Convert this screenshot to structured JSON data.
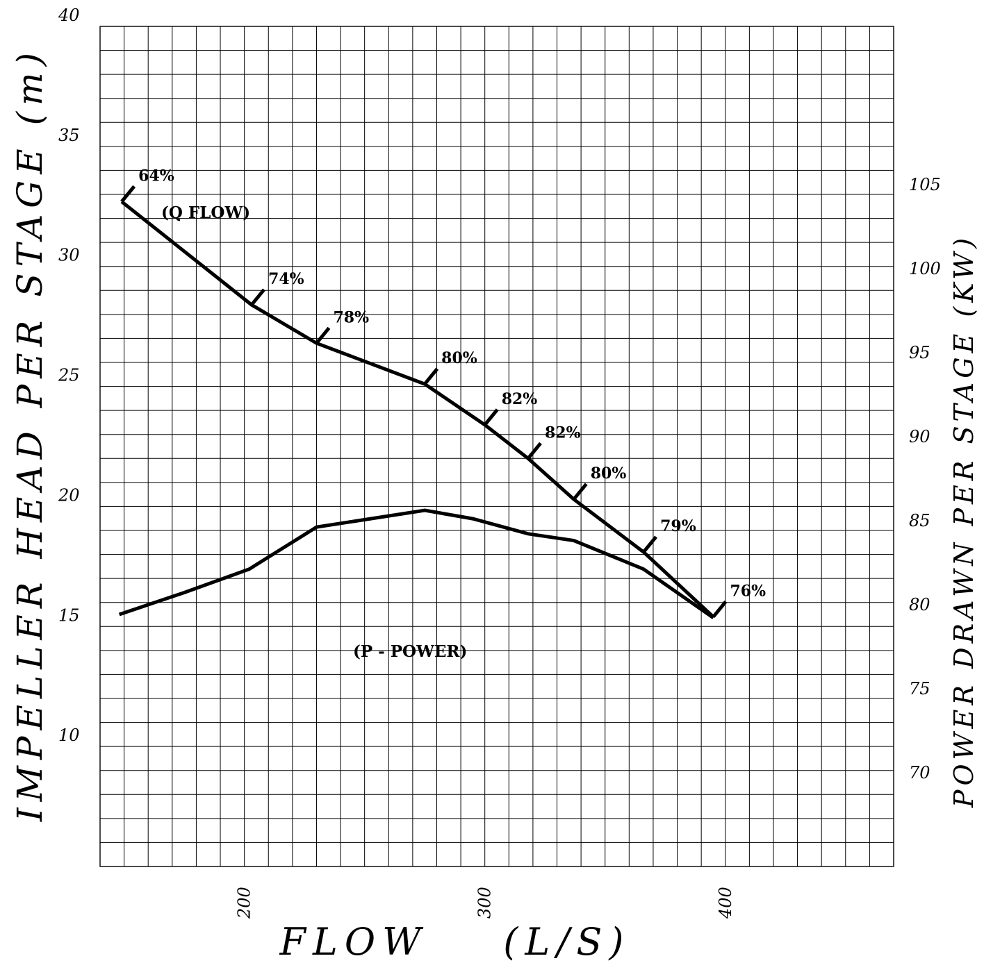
{
  "chart_data": {
    "type": "line",
    "title": "",
    "xlabel": "FLOW    (L/S)",
    "ylabel_left": "IMPELLER HEAD PER STAGE (m)",
    "ylabel_right": "POWER DRAWN PER STAGE (KW)",
    "xlim": [
      140,
      470
    ],
    "ylim_left": [
      5,
      40
    ],
    "ylim_right": [
      65,
      115
    ],
    "x_ticks": [
      "200",
      "300",
      "400"
    ],
    "y_left_ticks": [
      "10",
      "15",
      "20",
      "25",
      "30",
      "35",
      "40"
    ],
    "y_right_ticks": [
      "70",
      "75",
      "80",
      "85",
      "90",
      "95",
      "100",
      "105"
    ],
    "grid": true,
    "series": [
      {
        "name": "(Q FLOW)",
        "axis": "left",
        "x": [
          149,
          203,
          230,
          275,
          300,
          318,
          337,
          366,
          395
        ],
        "y": [
          32.7,
          28.4,
          26.8,
          25.1,
          23.4,
          22.0,
          20.3,
          18.1,
          15.4
        ]
      },
      {
        "name": "(P - POWER)",
        "axis": "right",
        "x": [
          148,
          175,
          202,
          230,
          275,
          295,
          318,
          337,
          366,
          395
        ],
        "y": [
          80.0,
          81.3,
          82.7,
          85.2,
          86.2,
          85.7,
          84.8,
          84.4,
          82.7,
          79.8
        ]
      }
    ],
    "efficiency_points": [
      {
        "label": "64%",
        "x": 149,
        "y": 32.7
      },
      {
        "label": "74%",
        "x": 203,
        "y": 28.4
      },
      {
        "label": "78%",
        "x": 230,
        "y": 26.8
      },
      {
        "label": "80%",
        "x": 275,
        "y": 25.1
      },
      {
        "label": "82%",
        "x": 300,
        "y": 23.4
      },
      {
        "label": "82%",
        "x": 318,
        "y": 22.0
      },
      {
        "label": "80%",
        "x": 337,
        "y": 20.3
      },
      {
        "label": "79%",
        "x": 366,
        "y": 18.1
      },
      {
        "label": "76%",
        "x": 395,
        "y": 15.4
      }
    ]
  }
}
